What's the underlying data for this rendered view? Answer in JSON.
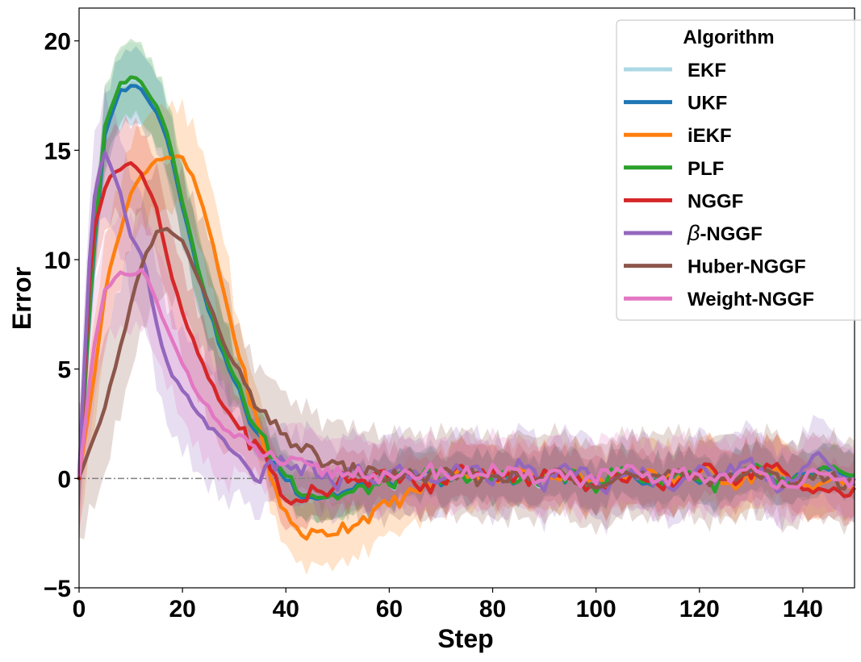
{
  "chart_data": {
    "type": "line",
    "xlabel": "Step",
    "ylabel": "Error",
    "xlim": [
      0,
      150
    ],
    "ylim": [
      -5,
      21.5
    ],
    "xticks": [
      0,
      20,
      40,
      60,
      80,
      100,
      120,
      140
    ],
    "xtick_labels": [
      "0",
      "20",
      "40",
      "60",
      "80",
      "100",
      "120",
      "140"
    ],
    "yticks": [
      -5,
      0,
      5,
      10,
      15,
      20
    ],
    "ytick_labels": [
      "−5",
      "0",
      "5",
      "10",
      "15",
      "20"
    ],
    "reference_line": {
      "y": 0,
      "style": "dash-dot",
      "color": "#808080"
    },
    "legend": {
      "title": "Algorithm",
      "location": "top-right"
    },
    "series": [
      {
        "name": "EKF",
        "label_prefix": "",
        "label_text": "EKF",
        "color": "#add8e6",
        "peak": 18.3,
        "peak_step": 7,
        "band_half_width": 1.0,
        "values": [
          0,
          9.6,
          15.9,
          17.8,
          18.3,
          17.9,
          17.0,
          15.4,
          12.6,
          10.0,
          7.9,
          6.0,
          4.5,
          3.1,
          1.9,
          0.9,
          0.1,
          -0.4,
          -0.7,
          -0.8,
          -0.8,
          -0.7,
          -0.5,
          -0.3,
          -0.2,
          -0.1,
          0,
          0.1,
          0.1,
          0,
          -0.1,
          0,
          0.2,
          0.1,
          -0.1,
          -0.2,
          0,
          0.3,
          0.1,
          -0.2,
          -0.3,
          0,
          0.3,
          0.2,
          -0.1,
          -0.2,
          0.1,
          0.3,
          0,
          -0.3,
          -0.2,
          0.1,
          0.4,
          0.2,
          -0.1,
          -0.3,
          -0.1,
          0.2,
          0.4,
          0.1,
          -0.2
        ]
      },
      {
        "name": "UKF",
        "label_prefix": "",
        "label_text": "UKF",
        "color": "#1f77b4",
        "peak": 18.0,
        "peak_step": 7,
        "band_half_width": 1.0,
        "values": [
          0,
          9.4,
          15.6,
          17.6,
          18.0,
          17.7,
          16.8,
          15.2,
          12.5,
          9.9,
          7.8,
          5.9,
          4.4,
          3.0,
          1.8,
          0.8,
          0.0,
          -0.5,
          -0.8,
          -0.8,
          -0.7,
          -0.6,
          -0.4,
          -0.3,
          -0.1,
          0,
          0.1,
          0.1,
          0,
          -0.1,
          -0.1,
          0.1,
          0.2,
          0,
          -0.2,
          -0.1,
          0.1,
          0.3,
          0,
          -0.3,
          -0.2,
          0.1,
          0.3,
          0.1,
          -0.2,
          -0.1,
          0.2,
          0.3,
          -0.1,
          -0.3,
          -0.1,
          0.2,
          0.3,
          0.1,
          -0.2,
          -0.3,
          0,
          0.3,
          0.3,
          0,
          -0.2
        ]
      },
      {
        "name": "iEKF",
        "label_prefix": "",
        "label_text": "iEKF",
        "color": "#ff7f0e",
        "peak": 14.7,
        "peak_step": 9,
        "band_half_width": 1.4,
        "values": [
          0,
          4.0,
          8.5,
          11.0,
          13.0,
          14.0,
          14.6,
          14.7,
          14.6,
          13.5,
          11.5,
          9.0,
          6.5,
          4.2,
          2.0,
          -0.2,
          -1.7,
          -2.4,
          -2.6,
          -2.5,
          -2.3,
          -2.1,
          -1.8,
          -1.5,
          -1.2,
          -0.9,
          -0.6,
          -0.3,
          -0.1,
          0.1,
          0.2,
          0.2,
          0.1,
          0.3,
          0.2,
          0,
          -0.1,
          0.2,
          0.3,
          0.1,
          -0.2,
          -0.1,
          0.2,
          0.3,
          0.1,
          -0.1,
          0,
          0.2,
          0.3,
          0.2,
          0,
          -0.2,
          0.1,
          0.3,
          0.2,
          -0.1,
          -0.3,
          -0.2,
          -0.1,
          -0.2,
          -0.3
        ]
      },
      {
        "name": "PLF",
        "label_prefix": "",
        "label_text": "PLF",
        "color": "#2ca02c",
        "peak": 18.4,
        "peak_step": 7,
        "band_half_width": 1.0,
        "values": [
          0,
          9.7,
          16.0,
          17.9,
          18.4,
          18.0,
          17.1,
          15.5,
          12.7,
          10.1,
          8.0,
          6.1,
          4.6,
          3.2,
          2.0,
          1.0,
          0.2,
          -0.4,
          -0.7,
          -0.8,
          -0.8,
          -0.7,
          -0.5,
          -0.3,
          -0.2,
          0,
          0.1,
          0.2,
          0.1,
          -0.1,
          -0.1,
          0.1,
          0.2,
          0.1,
          -0.2,
          -0.2,
          0.1,
          0.3,
          0.1,
          -0.2,
          -0.3,
          0.1,
          0.3,
          0.2,
          -0.1,
          -0.2,
          0.1,
          0.3,
          0,
          -0.3,
          -0.2,
          0.1,
          0.4,
          0.2,
          -0.1,
          -0.3,
          -0.1,
          0.2,
          0.4,
          0.1,
          -0.2
        ]
      },
      {
        "name": "NGGF",
        "label_prefix": "",
        "label_text": "NGGF",
        "color": "#d62728",
        "peak": 14.4,
        "peak_step": 7,
        "band_half_width": 1.2,
        "values": [
          0,
          11.2,
          13.3,
          14.2,
          14.4,
          13.8,
          12.4,
          9.6,
          7.5,
          6.0,
          4.6,
          3.4,
          2.7,
          1.8,
          1.3,
          0.4,
          -1.2,
          -1.0,
          -0.6,
          -0.8,
          0.0,
          0.2,
          -0.1,
          0.1,
          0.0,
          0.2,
          -0.3,
          -0.5,
          -0.2,
          0.3,
          0.5,
          0.4,
          0.2,
          0.3,
          0.0,
          -0.2,
          0.1,
          0.4,
          0.3,
          -0.2,
          -0.5,
          -0.3,
          0.1,
          0.2,
          -0.4,
          -0.5,
          -0.2,
          0.1,
          0.4,
          0.3,
          0.2,
          0.0,
          0.3,
          0.6,
          0.4,
          -0.1,
          -0.5,
          -0.3,
          -0.6,
          -0.8,
          -0.5
        ]
      },
      {
        "name": "β-NGGF",
        "label_prefix": "β",
        "label_text": "-NGGF",
        "color": "#9467bd",
        "peak": 15.0,
        "peak_step": 3,
        "band_half_width": 1.6,
        "values": [
          0,
          12.5,
          15.0,
          13.5,
          11.0,
          10.0,
          7.0,
          4.8,
          4.0,
          3.2,
          2.4,
          1.8,
          1.2,
          0.5,
          0.0,
          0.6,
          0.8,
          0.3,
          0.5,
          0.0,
          -0.3,
          0.4,
          0.2,
          -0.1,
          0.2,
          0.4,
          0.1,
          -0.2,
          0.1,
          0.3,
          0.5,
          0.3,
          0.0,
          0.2,
          0.6,
          0.2,
          -0.3,
          0.1,
          0.5,
          0.3,
          -0.2,
          -0.4,
          -0.1,
          0.3,
          0.2,
          -0.3,
          -0.2,
          0.2,
          0.3,
          0.0,
          0.3,
          0.6,
          0.7,
          0.2,
          -0.3,
          0.0,
          0.4,
          1.1,
          0.5,
          -0.2,
          0.1
        ]
      },
      {
        "name": "Huber-NGGF",
        "label_prefix": "",
        "label_text": "Huber-NGGF",
        "color": "#8c564b",
        "peak": 11.4,
        "peak_step": 11,
        "band_half_width": 1.8,
        "values": [
          0,
          1.5,
          3.3,
          5.5,
          8.0,
          10.0,
          11.2,
          11.4,
          10.8,
          9.5,
          8.0,
          6.5,
          5.2,
          4.0,
          3.0,
          2.4,
          1.9,
          1.5,
          1.1,
          0.8,
          0.5,
          0.4,
          0.3,
          0.2,
          0.1,
          0.1,
          0.2,
          0.0,
          0.1,
          0.2,
          0.1,
          0.0,
          0.1,
          0.2,
          0.0,
          -0.1,
          0.1,
          0.2,
          0.1,
          0.0,
          -0.1,
          0.0,
          0.2,
          0.1,
          0.0,
          -0.1,
          0.1,
          0.2,
          0.1,
          0.0,
          0.1,
          0.2,
          0.2,
          0.1,
          0.0,
          -0.1,
          0.0,
          0.1,
          0.0,
          -0.2,
          -0.1
        ]
      },
      {
        "name": "Weight-NGGF",
        "label_prefix": "",
        "label_text": "Weight-NGGF",
        "color": "#e377c2",
        "peak": 9.5,
        "peak_step": 11,
        "band_half_width": 1.5,
        "values": [
          0,
          5.5,
          8.5,
          9.3,
          9.3,
          9.5,
          8.0,
          6.5,
          5.3,
          4.1,
          3.2,
          2.4,
          1.9,
          1.5,
          1.2,
          0.9,
          0.7,
          0.6,
          0.4,
          0.3,
          0.3,
          0.2,
          0.4,
          0.1,
          -0.1,
          0.0,
          0.2,
          0.4,
          0.3,
          0.1,
          0.2,
          0.3,
          0.4,
          0.2,
          0.1,
          0.0,
          0.2,
          0.3,
          0.1,
          -0.1,
          0.0,
          0.2,
          0.3,
          0.2,
          0.0,
          -0.1,
          0.1,
          0.2,
          0.1,
          0.0,
          0.1,
          0.2,
          0.3,
          0.1,
          -0.1,
          -0.2,
          0.0,
          0.1,
          -0.1,
          -0.2,
          -0.1
        ]
      }
    ]
  }
}
